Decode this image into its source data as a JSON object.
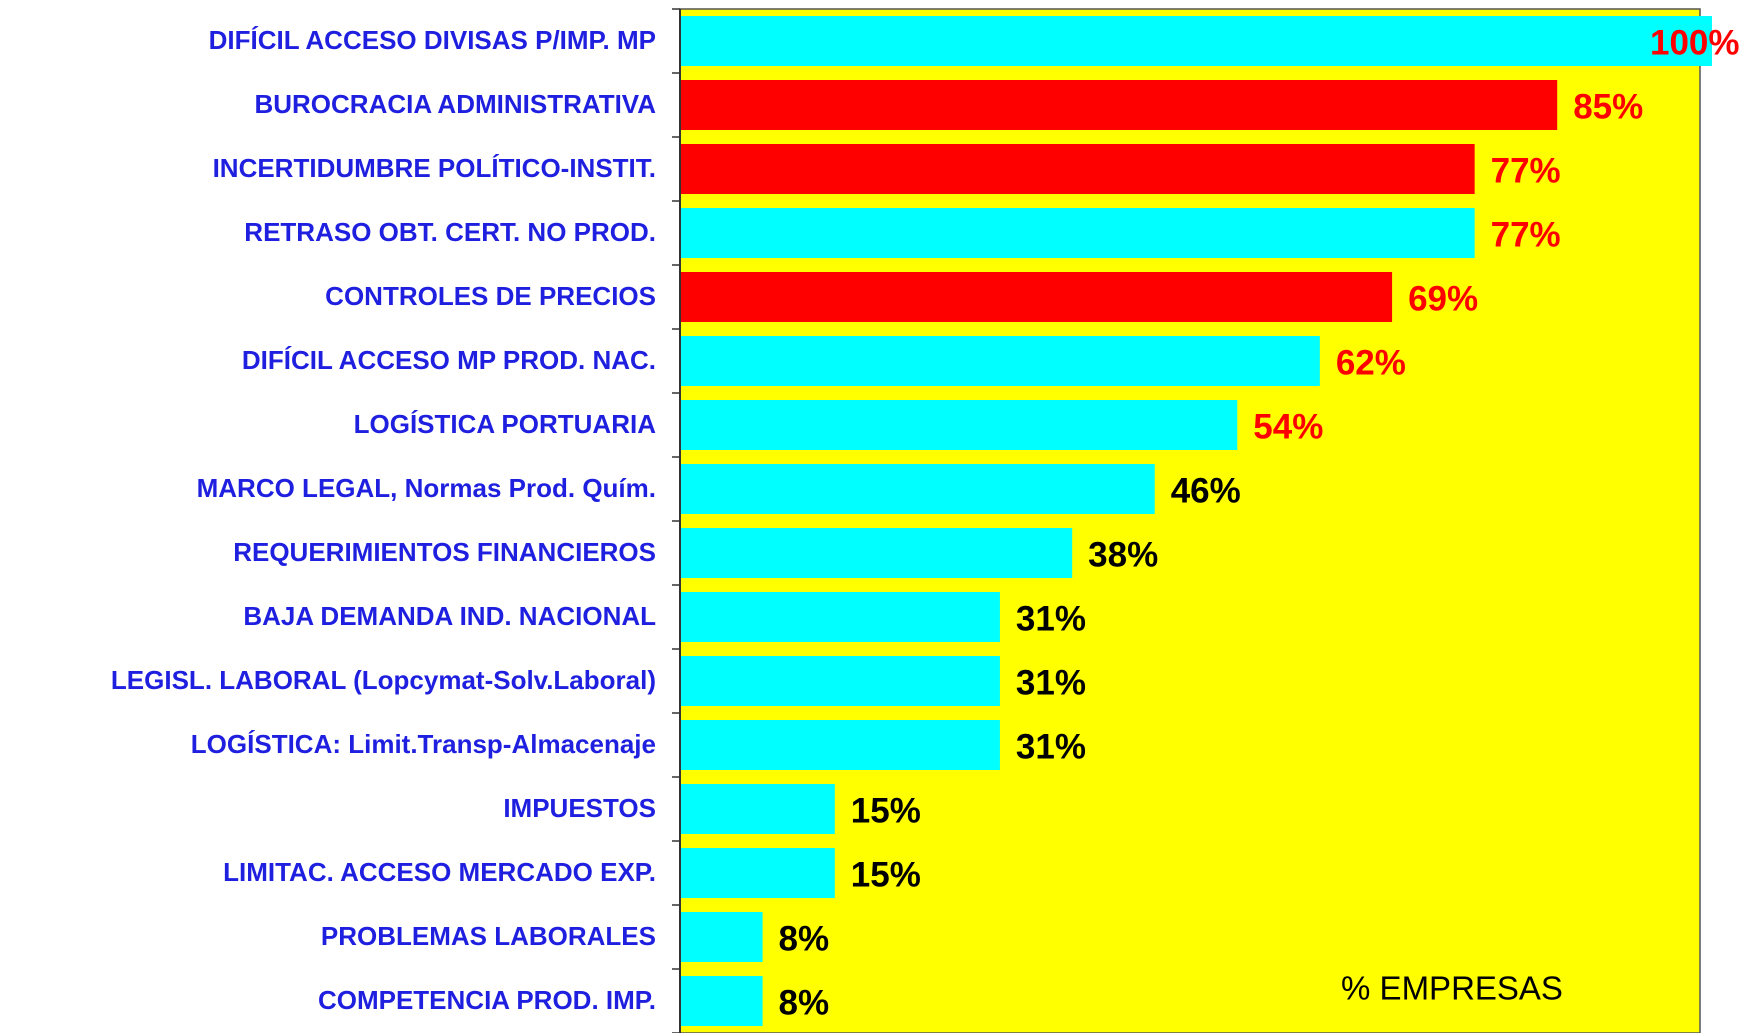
{
  "chart_data": {
    "type": "hbar",
    "categories": [
      "DIFÍCIL ACCESO DIVISAS P/IMP. MP",
      "BUROCRACIA ADMINISTRATIVA",
      "INCERTIDUMBRE POLÍTICO-INSTIT.",
      "RETRASO OBT. CERT. NO PROD.",
      "CONTROLES DE PRECIOS",
      "DIFÍCIL ACCESO MP PROD. NAC.",
      "LOGÍSTICA PORTUARIA",
      "MARCO LEGAL, Normas Prod. Quím.",
      "REQUERIMIENTOS FINANCIEROS",
      "BAJA DEMANDA IND. NACIONAL",
      "LEGISL. LABORAL (Lopcymat-Solv.Laboral)",
      "LOGÍSTICA: Limit.Transp-Almacenaje",
      "IMPUESTOS",
      "LIMITAC. ACCESO MERCADO EXP.",
      "PROBLEMAS LABORALES",
      "COMPETENCIA PROD. IMP."
    ],
    "values": [
      100,
      85,
      77,
      77,
      69,
      62,
      54,
      46,
      38,
      31,
      31,
      31,
      15,
      15,
      8,
      8
    ],
    "value_labels": [
      "100%",
      "85%",
      "77%",
      "77%",
      "69%",
      "62%",
      "54%",
      "46%",
      "38%",
      "31%",
      "31%",
      "31%",
      "15%",
      "15%",
      "8%",
      "8%"
    ],
    "colors": [
      "#00ffff",
      "#ff0000",
      "#ff0000",
      "#00ffff",
      "#ff0000",
      "#00ffff",
      "#00ffff",
      "#00ffff",
      "#00ffff",
      "#00ffff",
      "#00ffff",
      "#00ffff",
      "#00ffff",
      "#00ffff",
      "#00ffff",
      "#00ffff"
    ],
    "label_colors": [
      "#ff0000",
      "#ff0000",
      "#ff0000",
      "#ff0000",
      "#ff0000",
      "#ff0000",
      "#ff0000",
      "#000000",
      "#000000",
      "#000000",
      "#000000",
      "#000000",
      "#000000",
      "#000000",
      "#000000",
      "#000000"
    ],
    "plot_background": "#ffff00",
    "xlim": [
      0,
      100
    ],
    "annotation": "% EMPRESAS"
  }
}
